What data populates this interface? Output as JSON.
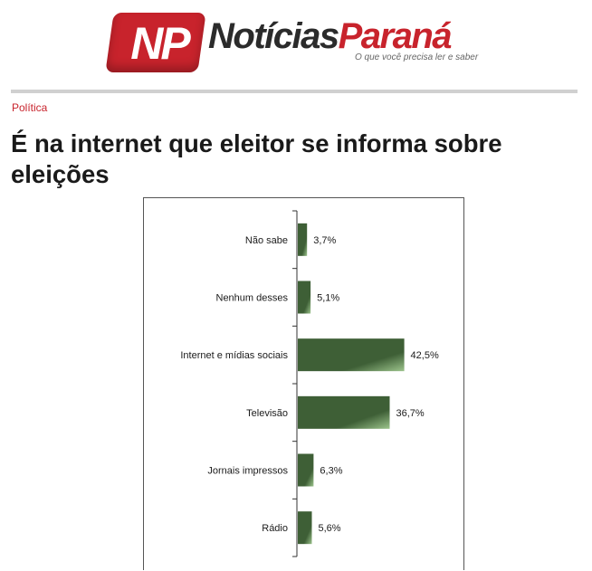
{
  "header": {
    "logo_initials": "NP",
    "brand_part1": "Notícias",
    "brand_part2": "Paraná",
    "tagline": "O que você precisa ler e saber"
  },
  "article": {
    "category": "Política",
    "title": "É na internet que eleitor se informa sobre eleições"
  },
  "colors": {
    "brand_red": "#c8232c",
    "bar_dark": "#3e5f36",
    "bar_light": "#9cc48c"
  },
  "chart_data": {
    "type": "bar",
    "orientation": "horizontal",
    "categories": [
      "Não sabe",
      "Nenhum desses",
      "Internet e mídias sociais",
      "Televisão",
      "Jornais impressos",
      "Rádio"
    ],
    "values": [
      3.7,
      5.1,
      42.5,
      36.7,
      6.3,
      5.6
    ],
    "value_labels": [
      "3,7%",
      "5,1%",
      "42,5%",
      "36,7%",
      "6,3%",
      "5,6%"
    ],
    "xlim": [
      0,
      50
    ],
    "grid": false,
    "legend": "none"
  }
}
